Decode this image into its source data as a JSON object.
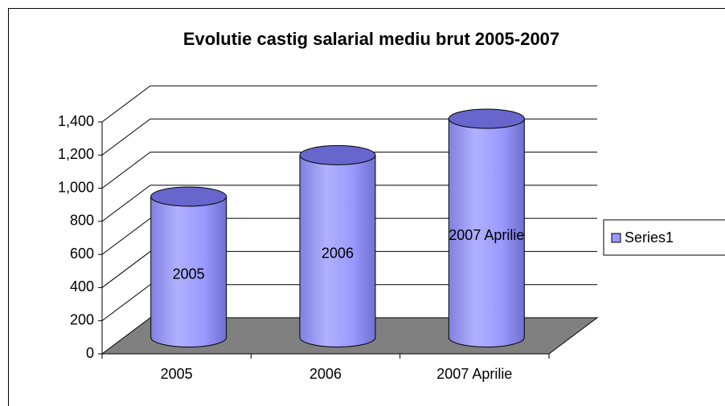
{
  "chart_data": {
    "type": "cylinder",
    "title": "Evolutie castig salarial mediu brut 2005-2007",
    "categories": [
      "2005",
      "2006",
      "2007 Aprilie"
    ],
    "series": [
      {
        "name": "Series1",
        "color": "#9999ff",
        "values": [
          850,
          1100,
          1320
        ]
      }
    ],
    "ylim": [
      0,
      1400
    ],
    "yticks": [
      0,
      200,
      400,
      600,
      800,
      {
        "value": 1000,
        "label": "1,000"
      },
      {
        "value": 1200,
        "label": "1,200"
      },
      {
        "value": 1400,
        "label": "1,400"
      }
    ],
    "grid": true,
    "legend": "right",
    "data_labels": "category"
  }
}
